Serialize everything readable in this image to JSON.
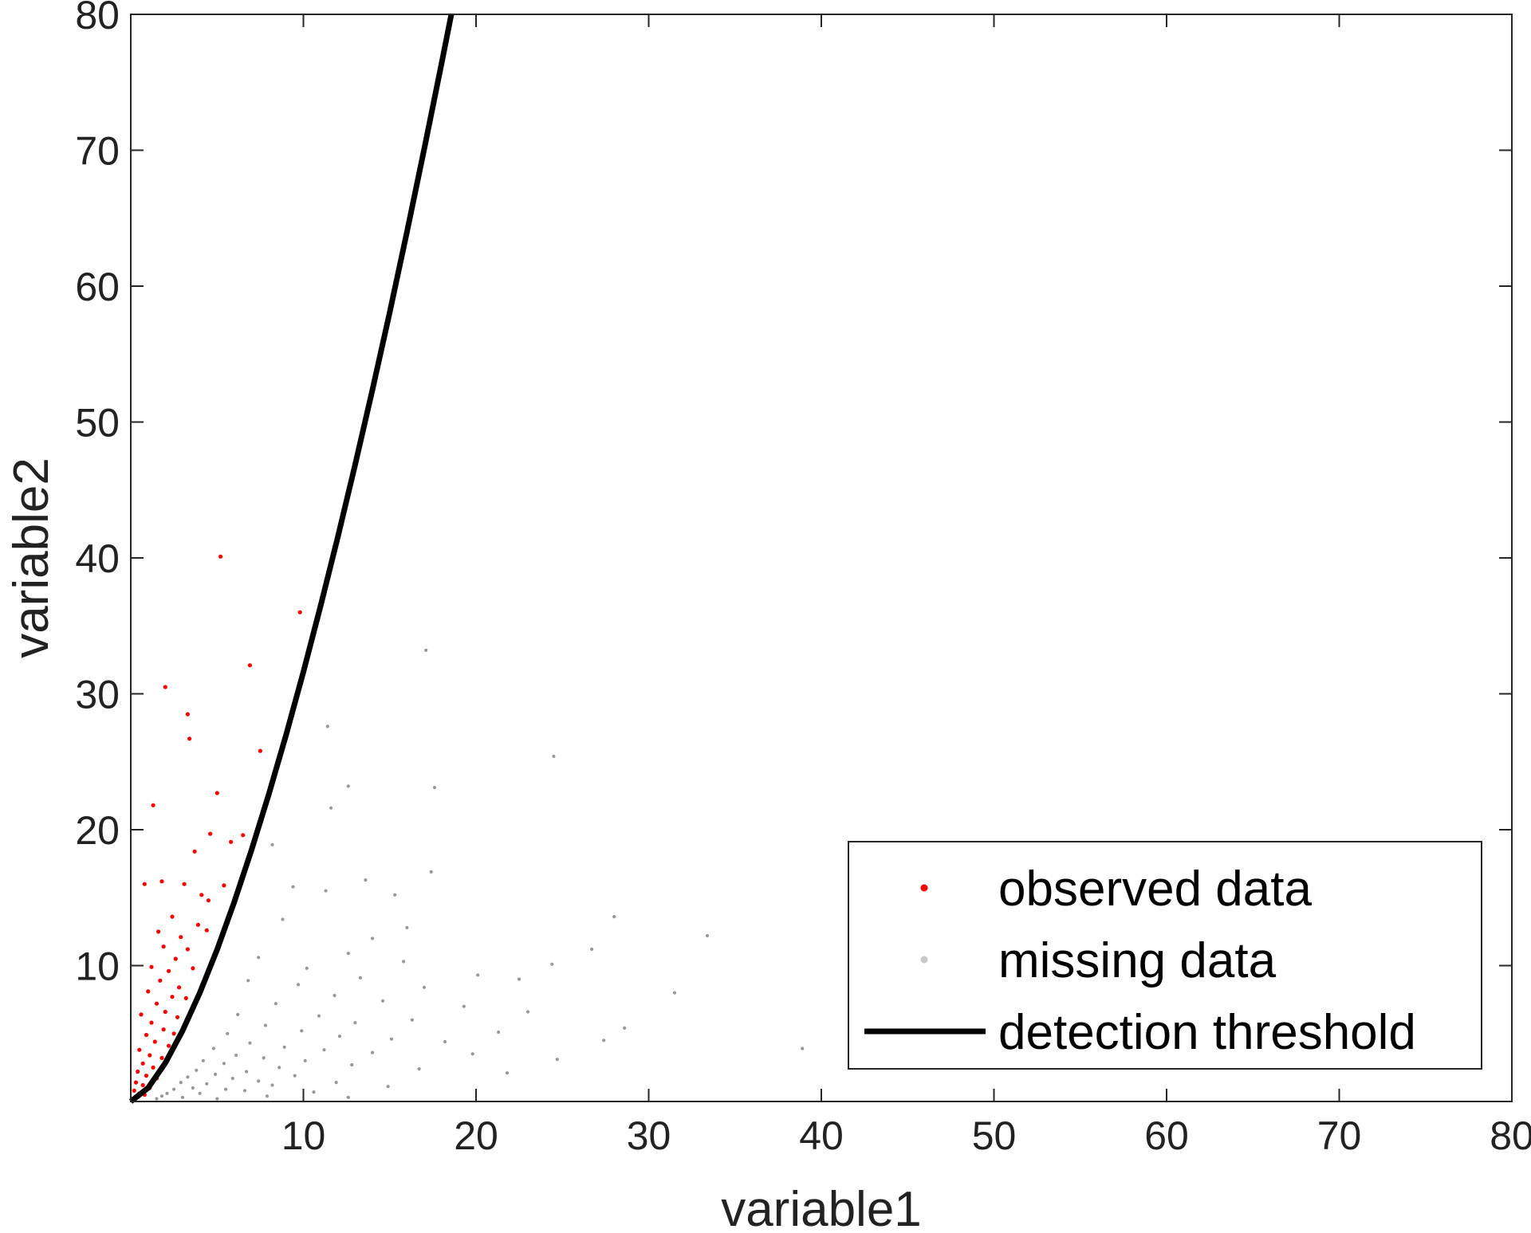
{
  "chart_data": {
    "type": "scatter",
    "title": "",
    "xlabel": "variable1",
    "ylabel": "variable2",
    "xlim": [
      0,
      80
    ],
    "ylim": [
      0,
      80
    ],
    "xticks": [
      10,
      20,
      30,
      40,
      50,
      60,
      70,
      80
    ],
    "yticks": [
      10,
      20,
      30,
      40,
      50,
      60,
      70,
      80
    ],
    "xtick_labels": [
      "10",
      "20",
      "30",
      "40",
      "50",
      "60",
      "70",
      "80"
    ],
    "ytick_labels": [
      "10",
      "20",
      "30",
      "40",
      "50",
      "60",
      "70",
      "80"
    ],
    "grid": false,
    "box": true,
    "legend_position": "bottom-right",
    "threshold_exponent": 1.5,
    "series": [
      {
        "name": "observed data",
        "kind": "points",
        "color": "#ff0000",
        "points": [
          [
            5.2,
            40.1
          ],
          [
            9.8,
            36.0
          ],
          [
            6.9,
            32.1
          ],
          [
            2.0,
            30.5
          ],
          [
            3.3,
            28.5
          ],
          [
            3.4,
            26.7
          ],
          [
            7.5,
            25.8
          ],
          [
            5.0,
            22.7
          ],
          [
            1.3,
            21.8
          ],
          [
            4.6,
            19.7
          ],
          [
            6.5,
            19.6
          ],
          [
            5.8,
            19.1
          ],
          [
            3.7,
            18.4
          ],
          [
            0.8,
            16.0
          ],
          [
            1.8,
            16.2
          ],
          [
            3.1,
            16.0
          ],
          [
            4.1,
            15.2
          ],
          [
            5.4,
            15.9
          ],
          [
            4.5,
            14.8
          ],
          [
            2.4,
            13.6
          ],
          [
            3.9,
            13.0
          ],
          [
            2.9,
            12.1
          ],
          [
            1.6,
            12.5
          ],
          [
            4.4,
            12.6
          ],
          [
            1.9,
            11.4
          ],
          [
            3.3,
            11.2
          ],
          [
            2.6,
            10.5
          ],
          [
            1.2,
            9.9
          ],
          [
            2.2,
            9.6
          ],
          [
            3.6,
            9.8
          ],
          [
            1.7,
            8.9
          ],
          [
            2.8,
            8.4
          ],
          [
            1.0,
            8.1
          ],
          [
            2.4,
            7.7
          ],
          [
            3.2,
            7.6
          ],
          [
            1.5,
            7.2
          ],
          [
            2.0,
            6.6
          ],
          [
            0.6,
            6.4
          ],
          [
            2.7,
            6.2
          ],
          [
            1.2,
            5.8
          ],
          [
            1.9,
            5.3
          ],
          [
            2.5,
            5.0
          ],
          [
            0.9,
            4.9
          ],
          [
            1.4,
            4.4
          ],
          [
            2.2,
            4.1
          ],
          [
            0.5,
            3.8
          ],
          [
            1.1,
            3.4
          ],
          [
            1.8,
            3.2
          ],
          [
            0.7,
            2.8
          ],
          [
            1.3,
            2.5
          ],
          [
            0.4,
            2.2
          ],
          [
            0.9,
            1.9
          ],
          [
            1.5,
            1.7
          ],
          [
            0.3,
            1.4
          ],
          [
            0.7,
            1.2
          ],
          [
            1.1,
            1.0
          ],
          [
            0.2,
            0.8
          ],
          [
            0.5,
            0.6
          ],
          [
            0.8,
            0.5
          ],
          [
            0.3,
            0.3
          ]
        ]
      },
      {
        "name": "missing data",
        "kind": "points",
        "color": "#1a1a1a",
        "points": [
          [
            17.1,
            33.2
          ],
          [
            11.4,
            27.6
          ],
          [
            24.5,
            25.4
          ],
          [
            12.6,
            23.2
          ],
          [
            17.6,
            23.1
          ],
          [
            11.6,
            21.6
          ],
          [
            8.2,
            18.9
          ],
          [
            17.4,
            16.9
          ],
          [
            13.6,
            16.3
          ],
          [
            9.4,
            15.8
          ],
          [
            11.3,
            15.5
          ],
          [
            15.3,
            15.2
          ],
          [
            28.0,
            13.6
          ],
          [
            8.8,
            13.4
          ],
          [
            16.0,
            12.8
          ],
          [
            33.4,
            12.2
          ],
          [
            14.0,
            12.0
          ],
          [
            26.7,
            11.2
          ],
          [
            12.6,
            10.9
          ],
          [
            7.4,
            10.6
          ],
          [
            15.8,
            10.3
          ],
          [
            24.4,
            10.1
          ],
          [
            10.2,
            9.8
          ],
          [
            20.1,
            9.3
          ],
          [
            13.3,
            9.1
          ],
          [
            22.5,
            9.0
          ],
          [
            6.8,
            8.9
          ],
          [
            9.7,
            8.6
          ],
          [
            17.0,
            8.4
          ],
          [
            31.5,
            8.0
          ],
          [
            11.8,
            7.8
          ],
          [
            14.6,
            7.4
          ],
          [
            8.4,
            7.2
          ],
          [
            19.3,
            7.0
          ],
          [
            23.0,
            6.6
          ],
          [
            6.2,
            6.4
          ],
          [
            10.9,
            6.3
          ],
          [
            16.3,
            6.0
          ],
          [
            13.0,
            5.8
          ],
          [
            28.6,
            5.4
          ],
          [
            7.8,
            5.6
          ],
          [
            9.9,
            5.2
          ],
          [
            21.3,
            5.1
          ],
          [
            5.6,
            5.0
          ],
          [
            12.1,
            4.8
          ],
          [
            15.1,
            4.6
          ],
          [
            18.2,
            4.4
          ],
          [
            27.4,
            4.5
          ],
          [
            6.9,
            4.3
          ],
          [
            8.9,
            4.0
          ],
          [
            11.2,
            3.8
          ],
          [
            38.9,
            3.9
          ],
          [
            4.8,
            3.9
          ],
          [
            14.0,
            3.6
          ],
          [
            19.8,
            3.5
          ],
          [
            6.1,
            3.4
          ],
          [
            7.7,
            3.2
          ],
          [
            10.1,
            3.0
          ],
          [
            24.7,
            3.1
          ],
          [
            4.2,
            3.0
          ],
          [
            5.4,
            2.8
          ],
          [
            12.8,
            2.7
          ],
          [
            8.6,
            2.5
          ],
          [
            16.7,
            2.4
          ],
          [
            3.8,
            2.3
          ],
          [
            6.7,
            2.2
          ],
          [
            4.9,
            2.0
          ],
          [
            9.5,
            1.9
          ],
          [
            21.8,
            2.1
          ],
          [
            3.3,
            1.8
          ],
          [
            5.9,
            1.7
          ],
          [
            7.4,
            1.5
          ],
          [
            11.9,
            1.4
          ],
          [
            2.9,
            1.4
          ],
          [
            4.4,
            1.3
          ],
          [
            8.2,
            1.2
          ],
          [
            14.9,
            1.1
          ],
          [
            3.6,
            1.0
          ],
          [
            5.5,
            0.9
          ],
          [
            2.5,
            0.9
          ],
          [
            6.6,
            0.8
          ],
          [
            10.6,
            0.7
          ],
          [
            2.1,
            0.6
          ],
          [
            4.0,
            0.6
          ],
          [
            1.8,
            0.4
          ],
          [
            7.9,
            0.4
          ],
          [
            3.0,
            0.3
          ],
          [
            12.6,
            0.3
          ],
          [
            1.5,
            0.2
          ],
          [
            5.0,
            0.2
          ]
        ]
      },
      {
        "name": "detection threshold",
        "kind": "line",
        "color": "#000000",
        "x": [
          0,
          1,
          2,
          3,
          4,
          5,
          6,
          7,
          8,
          9,
          10,
          11,
          12,
          13,
          14,
          15,
          16,
          17,
          18,
          18.57
        ],
        "y": [
          0,
          1.0,
          2.83,
          5.2,
          8.0,
          11.18,
          14.7,
          18.52,
          22.63,
          27.0,
          31.62,
          36.48,
          41.57,
          46.87,
          52.38,
          58.09,
          64.0,
          70.09,
          76.37,
          80.0
        ]
      }
    ]
  }
}
